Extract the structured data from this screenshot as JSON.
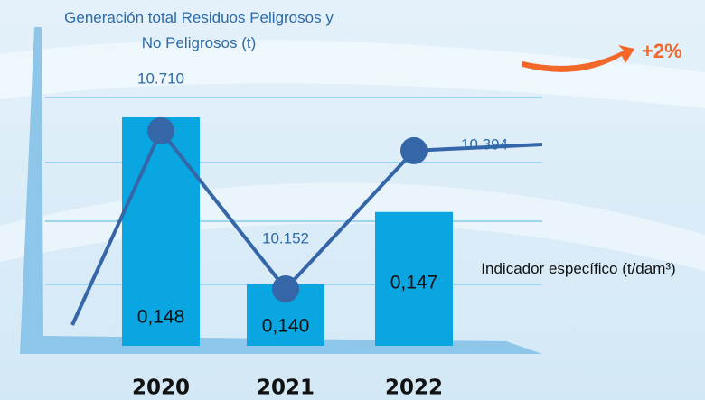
{
  "chart_data": {
    "type": "bar",
    "categories": [
      "2020",
      "2021",
      "2022"
    ],
    "series": [
      {
        "name": "Generación total Residuos Peligrosos y No Peligrosos (t)",
        "type": "bar",
        "color": "#0aa6e2",
        "values": [
          10710,
          10152,
          10394
        ],
        "value_labels": [
          "10.710",
          "10.152",
          "10.394"
        ]
      },
      {
        "name": "Indicador específico (t/dam³)",
        "type": "line",
        "color": "#3566a8",
        "values": [
          0.148,
          0.14,
          0.147
        ],
        "value_labels": [
          "0,148",
          "0,140",
          "0,147"
        ]
      }
    ],
    "annotation": {
      "text": "+2%",
      "color": "#f2672a"
    }
  }
}
